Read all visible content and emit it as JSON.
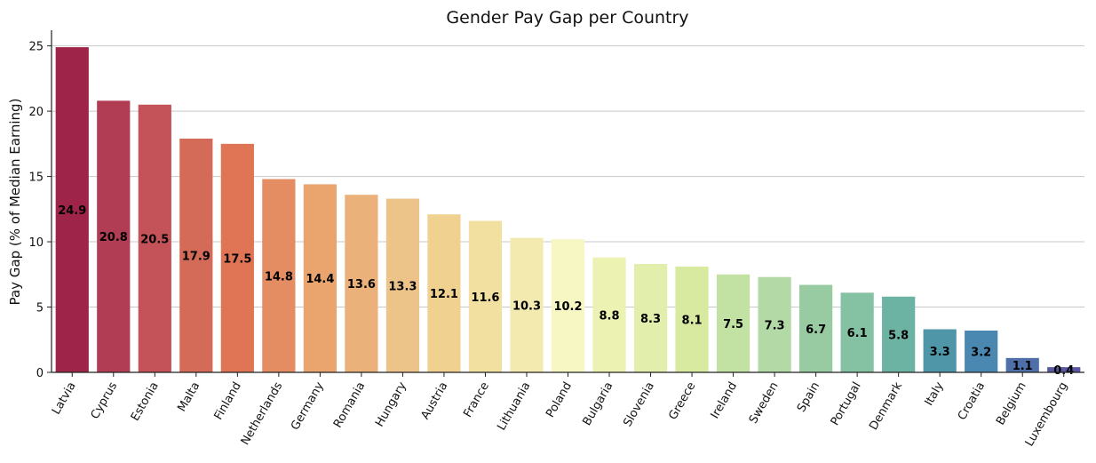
{
  "chart_data": {
    "type": "bar",
    "title": "Gender Pay Gap per Country",
    "xlabel": "",
    "ylabel": "Pay Gap (% of Median Earning)",
    "ylim": [
      0,
      26.2
    ],
    "yticks": [
      0,
      5,
      10,
      15,
      20,
      25
    ],
    "grid": "horizontal",
    "categories": [
      "Latvia",
      "Cyprus",
      "Estonia",
      "Malta",
      "Finland",
      "Netherlands",
      "Germany",
      "Romania",
      "Hungary",
      "Austria",
      "France",
      "Lithuania",
      "Poland",
      "Bulgaria",
      "Slovenia",
      "Greece",
      "Ireland",
      "Sweden",
      "Spain",
      "Portugal",
      "Denmark",
      "Italy",
      "Croatia",
      "Belgium",
      "Luxembourg"
    ],
    "values": [
      24.9,
      20.8,
      20.5,
      17.9,
      17.5,
      14.8,
      14.4,
      13.6,
      13.3,
      12.1,
      11.6,
      10.3,
      10.2,
      8.8,
      8.3,
      8.1,
      7.5,
      7.3,
      6.7,
      6.1,
      5.8,
      3.3,
      3.2,
      1.1,
      0.4
    ],
    "value_labels": [
      "24.9",
      "20.8",
      "20.5",
      "17.9",
      "17.5",
      "14.8",
      "14.4",
      "13.6",
      "13.3",
      "12.1",
      "11.6",
      "10.3",
      "10.2",
      "8.8",
      "8.3",
      "8.1",
      "7.5",
      "7.3",
      "6.7",
      "6.1",
      "5.8",
      "3.3",
      "3.2",
      "1.1",
      "0.4"
    ],
    "colors": [
      "#9e2449",
      "#b03d53",
      "#c45359",
      "#d46a58",
      "#e07555",
      "#e48c62",
      "#eaa46e",
      "#eab27a",
      "#ecc388",
      "#f1d18f",
      "#f1e09f",
      "#f2eaaf",
      "#f7f7c3",
      "#ecf2b2",
      "#e2eeab",
      "#d8ea9f",
      "#c2e2a3",
      "#b2d9a6",
      "#99cba2",
      "#85c1a3",
      "#6cb3a3",
      "#4f96a8",
      "#4b88b1",
      "#4f6fa8",
      "#5a58a0"
    ]
  }
}
